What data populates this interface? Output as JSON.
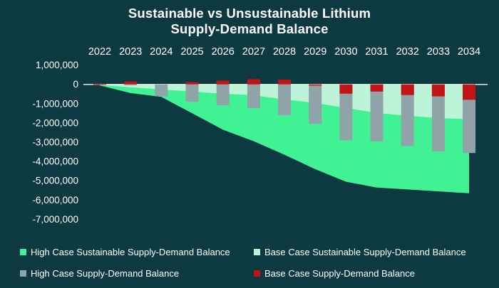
{
  "title": {
    "line1": "Sustainable vs Unsustainable Lithium",
    "line2": "Supply-Demand Balance"
  },
  "chart_data": {
    "type": "combo-area-bar",
    "title": "Sustainable vs Unsustainable Lithium Supply-Demand Balance",
    "categories": [
      "2022",
      "2023",
      "2024",
      "2025",
      "2026",
      "2027",
      "2028",
      "2029",
      "2030",
      "2031",
      "2032",
      "2033",
      "2034"
    ],
    "series": [
      {
        "name": "High Case Sustainable Supply-Demand Balance",
        "kind": "area",
        "color": "#41F295",
        "values": [
          -50000,
          -450000,
          -650000,
          -1500000,
          -2350000,
          -2950000,
          -3650000,
          -4400000,
          -5050000,
          -5350000,
          -5450000,
          -5550000,
          -5650000
        ]
      },
      {
        "name": "Base Case Sustainable Supply-Demand Balance",
        "kind": "area",
        "color": "#BDF4D9",
        "values": [
          -30000,
          -150000,
          -260000,
          -370000,
          -480000,
          -560000,
          -780000,
          -960000,
          -1220000,
          -1480000,
          -1630000,
          -1740000,
          -1810000
        ]
      },
      {
        "name": "High Case Supply-Demand Balance",
        "kind": "bar",
        "color": "#8FA3A8",
        "values": [
          -30000,
          -40000,
          -620000,
          -900000,
          -1080000,
          -1230000,
          -1600000,
          -2050000,
          -2900000,
          -2950000,
          -3200000,
          -3480000,
          -3560000
        ]
      },
      {
        "name": "Base Case Supply-Demand Balance",
        "kind": "bar",
        "color": "#C21414",
        "values": [
          40000,
          150000,
          0,
          120000,
          200000,
          270000,
          250000,
          -60000,
          -480000,
          -370000,
          -550000,
          -620000,
          -800000
        ]
      }
    ],
    "y_axis": {
      "tick_values": [
        1000000,
        0,
        -1000000,
        -2000000,
        -3000000,
        -4000000,
        -5000000,
        -6000000,
        -7000000
      ],
      "tick_labels": [
        "1,000,000",
        "0",
        "-1,000,000",
        "-2,000,000",
        "-3,000,000",
        "-4,000,000",
        "-5,000,000",
        "-6,000,000",
        "-7,000,000"
      ],
      "min": -7000000,
      "max": 1000000
    },
    "x_axis": {
      "position": "top"
    },
    "legend_position": "bottom",
    "grid": false,
    "colors": {
      "background": "#0D3A40",
      "text": "#FFFFFF",
      "axis_line": "#D9EDE3"
    }
  }
}
